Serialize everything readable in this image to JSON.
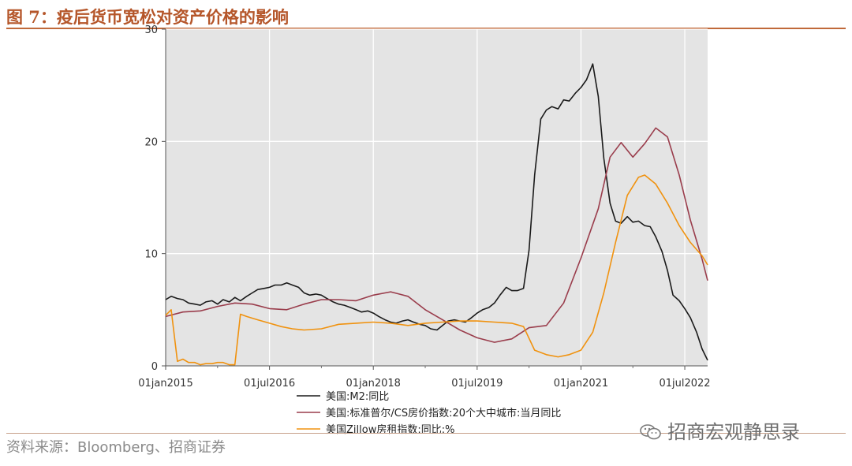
{
  "figure": {
    "title": "图 7：疫后货币宽松对资产价格的影响",
    "source": "资料来源：Bloomberg、招商证券",
    "watermark": "招商宏观静思录",
    "watermark_icon": "wechat-icon"
  },
  "colors": {
    "plot_bg": "#e4e4e4",
    "title": "#b5562a",
    "m2": "#1a1a1a",
    "cs": "#9a3d4c",
    "zillow": "#f0920f"
  },
  "chart_data": {
    "type": "line",
    "xlabel": "",
    "ylabel": "",
    "x_ticks": [
      {
        "label": "01jan2015",
        "t": 2015.0
      },
      {
        "label": "01jul2016",
        "t": 2016.5
      },
      {
        "label": "01jan2018",
        "t": 2018.0
      },
      {
        "label": "01jul2019",
        "t": 2019.5
      },
      {
        "label": "01jan2021",
        "t": 2021.0
      },
      {
        "label": "01jul2022",
        "t": 2022.5
      }
    ],
    "xlim": [
      2015.0,
      2022.83
    ],
    "y_ticks": [
      0,
      10,
      20,
      30
    ],
    "ylim": [
      0,
      30
    ],
    "grid": true,
    "legend_position": "bottom",
    "series": [
      {
        "name": "美国:M2:同比",
        "color_key": "m2",
        "x": [
          2015.0,
          2015.08,
          2015.17,
          2015.25,
          2015.33,
          2015.42,
          2015.5,
          2015.58,
          2015.67,
          2015.75,
          2015.83,
          2015.92,
          2016.0,
          2016.08,
          2016.17,
          2016.25,
          2016.33,
          2016.42,
          2016.5,
          2016.58,
          2016.67,
          2016.75,
          2016.83,
          2016.92,
          2017.0,
          2017.08,
          2017.17,
          2017.25,
          2017.33,
          2017.42,
          2017.5,
          2017.58,
          2017.67,
          2017.75,
          2017.83,
          2017.92,
          2018.0,
          2018.08,
          2018.17,
          2018.25,
          2018.33,
          2018.42,
          2018.5,
          2018.58,
          2018.67,
          2018.75,
          2018.83,
          2018.92,
          2019.0,
          2019.08,
          2019.17,
          2019.25,
          2019.33,
          2019.42,
          2019.5,
          2019.58,
          2019.67,
          2019.75,
          2019.83,
          2019.92,
          2020.0,
          2020.08,
          2020.17,
          2020.25,
          2020.33,
          2020.42,
          2020.5,
          2020.58,
          2020.67,
          2020.75,
          2020.83,
          2020.92,
          2021.0,
          2021.08,
          2021.17,
          2021.25,
          2021.33,
          2021.42,
          2021.5,
          2021.58,
          2021.67,
          2021.75,
          2021.83,
          2021.92,
          2022.0,
          2022.08,
          2022.17,
          2022.25,
          2022.33,
          2022.42,
          2022.5,
          2022.58,
          2022.67,
          2022.75,
          2022.83
        ],
        "y": [
          5.9,
          6.2,
          6.0,
          5.9,
          5.6,
          5.5,
          5.4,
          5.7,
          5.8,
          5.5,
          5.9,
          5.7,
          6.1,
          5.8,
          6.2,
          6.5,
          6.8,
          6.9,
          7.0,
          7.2,
          7.2,
          7.4,
          7.2,
          7.0,
          6.5,
          6.3,
          6.4,
          6.3,
          6.0,
          5.7,
          5.5,
          5.4,
          5.2,
          5.0,
          4.8,
          4.9,
          4.7,
          4.4,
          4.1,
          3.9,
          3.8,
          4.0,
          4.1,
          3.9,
          3.7,
          3.6,
          3.3,
          3.2,
          3.6,
          4.0,
          4.1,
          4.0,
          3.9,
          4.3,
          4.7,
          5.0,
          5.2,
          5.6,
          6.3,
          7.0,
          6.7,
          6.7,
          6.9,
          10.3,
          17.0,
          22.0,
          22.8,
          23.1,
          22.9,
          23.7,
          23.6,
          24.3,
          24.8,
          25.5,
          26.9,
          24.0,
          18.5,
          14.5,
          12.9,
          12.7,
          13.3,
          12.8,
          12.9,
          12.5,
          12.4,
          11.5,
          10.2,
          8.5,
          6.3,
          5.8,
          5.1,
          4.3,
          3.0,
          1.5,
          0.5
        ]
      },
      {
        "name": "美国:标准普尔/CS房价指数:20个大中城市:当月同比",
        "color_key": "cs",
        "x": [
          2015.0,
          2015.25,
          2015.5,
          2015.75,
          2016.0,
          2016.25,
          2016.5,
          2016.75,
          2017.0,
          2017.25,
          2017.5,
          2017.75,
          2018.0,
          2018.25,
          2018.5,
          2018.75,
          2019.0,
          2019.25,
          2019.5,
          2019.75,
          2020.0,
          2020.25,
          2020.5,
          2020.75,
          2021.0,
          2021.25,
          2021.42,
          2021.58,
          2021.75,
          2021.92,
          2022.08,
          2022.25,
          2022.42,
          2022.58,
          2022.75,
          2022.83
        ],
        "y": [
          4.4,
          4.8,
          4.9,
          5.3,
          5.6,
          5.5,
          5.1,
          5.0,
          5.5,
          5.9,
          5.9,
          5.8,
          6.3,
          6.6,
          6.2,
          5.0,
          4.1,
          3.2,
          2.5,
          2.1,
          2.4,
          3.4,
          3.6,
          5.6,
          9.6,
          14.0,
          18.6,
          19.9,
          18.6,
          19.8,
          21.2,
          20.4,
          17.0,
          13.0,
          9.5,
          7.6
        ]
      },
      {
        "name": "美国Zillow房租指数:同比:%",
        "color_key": "zillow",
        "x": [
          2015.0,
          2015.08,
          2015.17,
          2015.25,
          2015.33,
          2015.42,
          2015.5,
          2015.58,
          2015.67,
          2015.75,
          2015.83,
          2015.92,
          2016.0,
          2016.08,
          2016.17,
          2016.33,
          2016.5,
          2016.67,
          2016.83,
          2017.0,
          2017.25,
          2017.5,
          2017.75,
          2018.0,
          2018.25,
          2018.5,
          2018.75,
          2019.0,
          2019.25,
          2019.5,
          2019.75,
          2020.0,
          2020.17,
          2020.33,
          2020.5,
          2020.67,
          2020.83,
          2021.0,
          2021.17,
          2021.33,
          2021.5,
          2021.67,
          2021.83,
          2021.92,
          2022.08,
          2022.25,
          2022.42,
          2022.58,
          2022.75,
          2022.83
        ],
        "y": [
          4.5,
          5.0,
          0.4,
          0.6,
          0.3,
          0.3,
          0.1,
          0.2,
          0.2,
          0.3,
          0.3,
          0.1,
          0.1,
          4.6,
          4.4,
          4.1,
          3.8,
          3.5,
          3.3,
          3.2,
          3.3,
          3.7,
          3.8,
          3.9,
          3.8,
          3.6,
          3.8,
          3.9,
          4.0,
          4.0,
          3.9,
          3.8,
          3.5,
          1.4,
          1.0,
          0.8,
          1.0,
          1.4,
          3.0,
          6.5,
          11.0,
          15.2,
          16.8,
          17.0,
          16.2,
          14.5,
          12.5,
          11.0,
          9.8,
          9.0
        ]
      }
    ]
  }
}
